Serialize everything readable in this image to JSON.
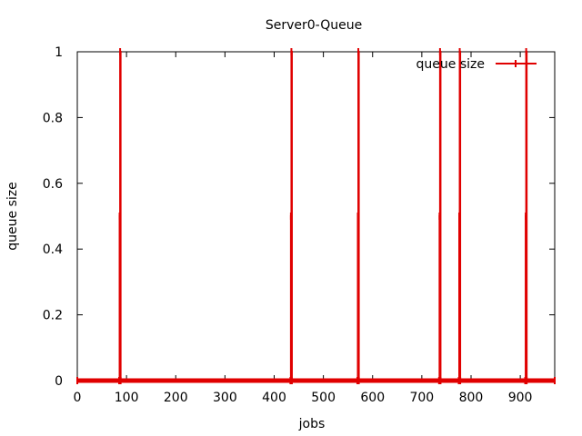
{
  "chart_data": {
    "type": "line",
    "title": "Server0-Queue",
    "xlabel": "jobs",
    "ylabel": "queue size",
    "xlim": [
      0,
      970
    ],
    "ylim": [
      0,
      1
    ],
    "xticks": [
      0,
      100,
      200,
      300,
      400,
      500,
      600,
      700,
      800,
      900
    ],
    "xtick_labels": [
      "0",
      "100",
      "200",
      "300",
      "400",
      "500",
      "600",
      "700",
      "800",
      "900"
    ],
    "yticks": [
      0,
      0.2,
      0.4,
      0.6,
      0.8,
      1
    ],
    "ytick_labels": [
      "0",
      "0.2",
      "0.4",
      "0.6",
      "0.8",
      "1"
    ],
    "legend_position": "top-right",
    "series": [
      {
        "name": "queue size",
        "color": "#e00000",
        "points": [
          [
            0,
            0
          ],
          [
            85,
            0
          ],
          [
            86,
            0.5
          ],
          [
            87,
            1
          ],
          [
            88,
            0
          ],
          [
            433,
            0
          ],
          [
            434,
            0.5
          ],
          [
            435,
            1
          ],
          [
            436,
            0
          ],
          [
            569,
            0
          ],
          [
            570,
            0.5
          ],
          [
            571,
            1
          ],
          [
            572,
            0
          ],
          [
            735,
            0
          ],
          [
            736,
            0.5
          ],
          [
            737,
            1
          ],
          [
            738,
            0
          ],
          [
            775,
            0
          ],
          [
            776,
            0.5
          ],
          [
            777,
            1
          ],
          [
            778,
            0
          ],
          [
            910,
            0
          ],
          [
            911,
            0.5
          ],
          [
            912,
            1
          ],
          [
            913,
            0
          ],
          [
            970,
            0
          ]
        ]
      }
    ]
  }
}
